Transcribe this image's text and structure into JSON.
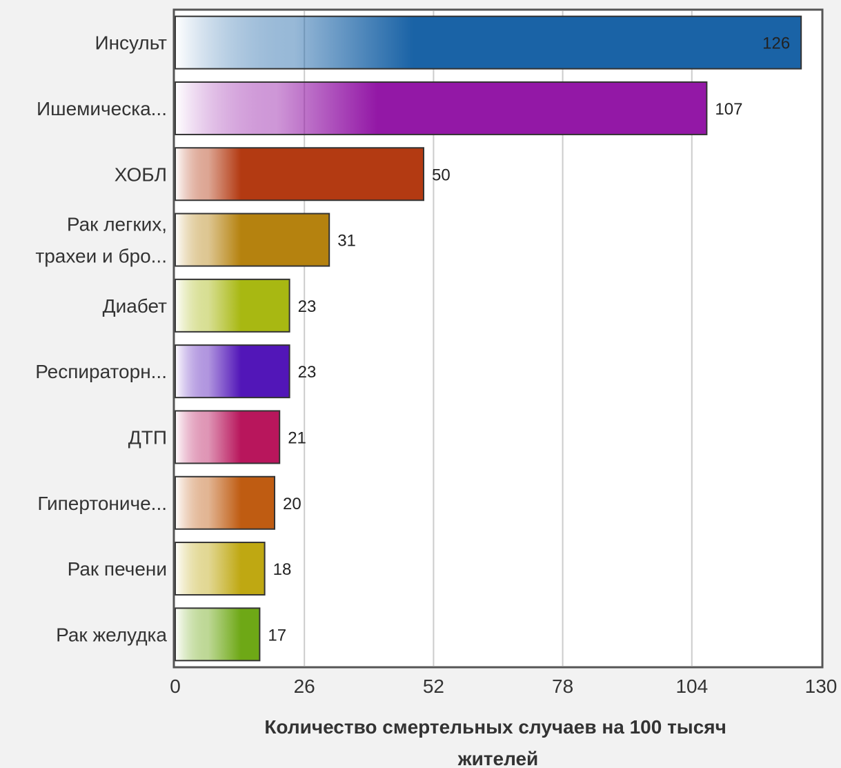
{
  "chart_data": {
    "type": "bar",
    "orientation": "horizontal",
    "categories": [
      [
        "Инсульт"
      ],
      [
        "Ишемическа..."
      ],
      [
        "ХОБЛ"
      ],
      [
        "Рак легких,",
        "трахеи и бро..."
      ],
      [
        "Диабет"
      ],
      [
        "Респираторн..."
      ],
      [
        "ДТП"
      ],
      [
        "Гипертониче..."
      ],
      [
        "Рак печени"
      ],
      [
        "Рак желудка"
      ]
    ],
    "values": [
      126,
      107,
      50,
      31,
      23,
      23,
      21,
      20,
      18,
      17
    ],
    "value_labels": [
      "126",
      "107",
      "50",
      "31",
      "23",
      "23",
      "21",
      "20",
      "18",
      "17"
    ],
    "colors": [
      "#1a63a6",
      "#9318a6",
      "#b33a12",
      "#b5820f",
      "#a8b812",
      "#5216b8",
      "#b8165c",
      "#bf5c12",
      "#bfa812",
      "#6ea816"
    ],
    "xticks": [
      0,
      26,
      52,
      78,
      104,
      130
    ],
    "xlim": [
      0,
      130
    ],
    "xlabel": [
      "Количество смертельных случаев на 100 тысяч",
      "жителей"
    ],
    "grid": true
  }
}
